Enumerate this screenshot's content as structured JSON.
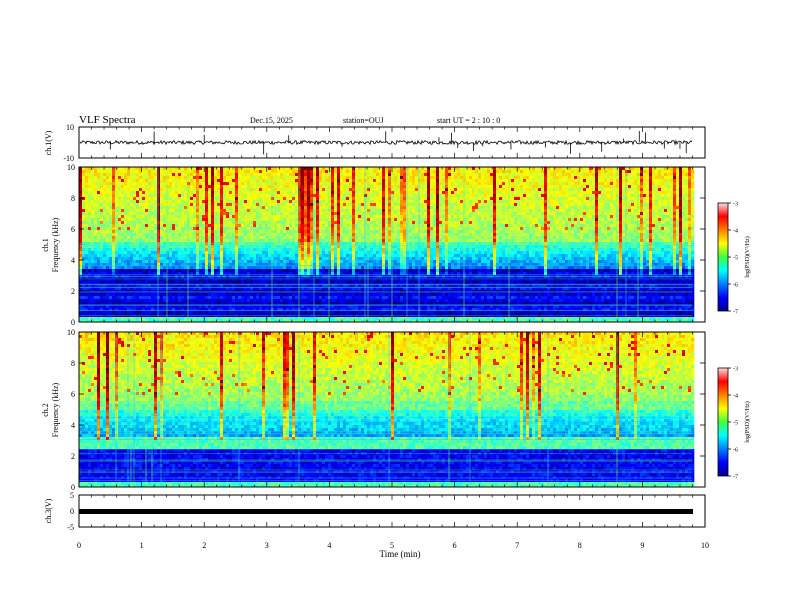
{
  "header": {
    "title": "VLF Spectra",
    "date": "Dec.15, 2025",
    "station": "station=OUJ",
    "start": "start  UT =   2 : 10 : 0"
  },
  "chart_data": [
    {
      "type": "line",
      "name": "ch1-waveform",
      "ylabel": "ch.1(V)",
      "ylim": [
        -10,
        10
      ],
      "yticks": [
        "10",
        "-10"
      ],
      "xlim": [
        0,
        10
      ],
      "baseline": 0,
      "noise_amplitude": 1.2,
      "spikes_min": [
        0.5,
        1.2,
        2.0,
        2.95,
        3.35,
        4.2,
        4.9,
        5.75,
        5.95,
        6.05,
        6.3,
        6.45,
        6.9,
        7.45,
        7.85,
        8.35,
        8.7,
        8.95,
        9.05,
        9.35,
        9.6,
        9.7
      ]
    },
    {
      "type": "heatmap",
      "name": "ch1-spectrogram",
      "ylabel": "ch.1",
      "ylabel2": "Frequency (kHz)",
      "xlim": [
        0,
        10
      ],
      "data_end_min": 9.8,
      "ylim": [
        0,
        10
      ],
      "yticks": [
        "0",
        "2",
        "4",
        "6",
        "8",
        "10"
      ],
      "colorbar": {
        "label": "log(PSD)(V²/Hz)",
        "range": [
          -7,
          -3
        ],
        "ticks": [
          "-3",
          "-4",
          "-5",
          "-6",
          "-7"
        ],
        "colormap": "jet"
      },
      "bands_khz": [
        [
          0.3,
          3.5,
          "dark-blue noise floor"
        ],
        [
          3.5,
          5.2,
          "blue-cyan"
        ],
        [
          5.2,
          10,
          "green-yellow with red sferics"
        ]
      ]
    },
    {
      "type": "heatmap",
      "name": "ch2-spectrogram",
      "ylabel": "ch.2",
      "ylabel2": "Frequency (kHz)",
      "xlim": [
        0,
        10
      ],
      "data_end_min": 9.8,
      "ylim": [
        0,
        10
      ],
      "yticks": [
        "0",
        "2",
        "4",
        "6",
        "8",
        "10"
      ],
      "colorbar": {
        "label": "log(PSD)(V²/Hz)",
        "range": [
          -7,
          -3
        ],
        "ticks": [
          "-3",
          "-4",
          "-5",
          "-6",
          "-7"
        ],
        "colormap": "jet"
      },
      "bands_khz": [
        [
          0.3,
          2.5,
          "dark-blue noise floor"
        ],
        [
          2.5,
          3.2,
          "green line"
        ],
        [
          3.2,
          5.0,
          "blue-cyan"
        ],
        [
          5.0,
          10,
          "green-yellow with red sferics"
        ]
      ]
    },
    {
      "type": "line",
      "name": "ch3-waveform",
      "ylabel": "ch.3(V)",
      "ylim": [
        -5,
        5
      ],
      "yticks": [
        "5",
        "0",
        "-5"
      ],
      "xlim": [
        0,
        10
      ],
      "baseline": 0,
      "noise_amplitude": 0.2
    }
  ],
  "x_axis": {
    "label": "Time (min)",
    "ticks": [
      "0",
      "1",
      "2",
      "3",
      "4",
      "5",
      "6",
      "7",
      "8",
      "9",
      "10"
    ]
  }
}
